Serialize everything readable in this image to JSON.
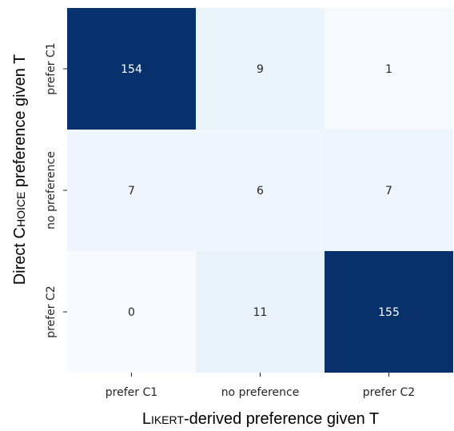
{
  "chart_data": {
    "type": "heatmap",
    "x_categories": [
      "prefer C1",
      "no preference",
      "prefer C2"
    ],
    "y_categories": [
      "prefer C1",
      "no preference",
      "prefer C2"
    ],
    "values": [
      [
        154,
        9,
        1
      ],
      [
        7,
        6,
        7
      ],
      [
        0,
        11,
        155
      ]
    ],
    "xlabel": {
      "prefix": "L",
      "smallcaps": "ikert",
      "suffix": "-derived preference given T"
    },
    "ylabel": {
      "prefix": "Direct C",
      "smallcaps": "hoice",
      "suffix": " preference given T"
    },
    "colormap": {
      "low": "#f7fbff",
      "high": "#08306b",
      "vmin": 0,
      "vmax": 155
    },
    "colorbar": false
  }
}
